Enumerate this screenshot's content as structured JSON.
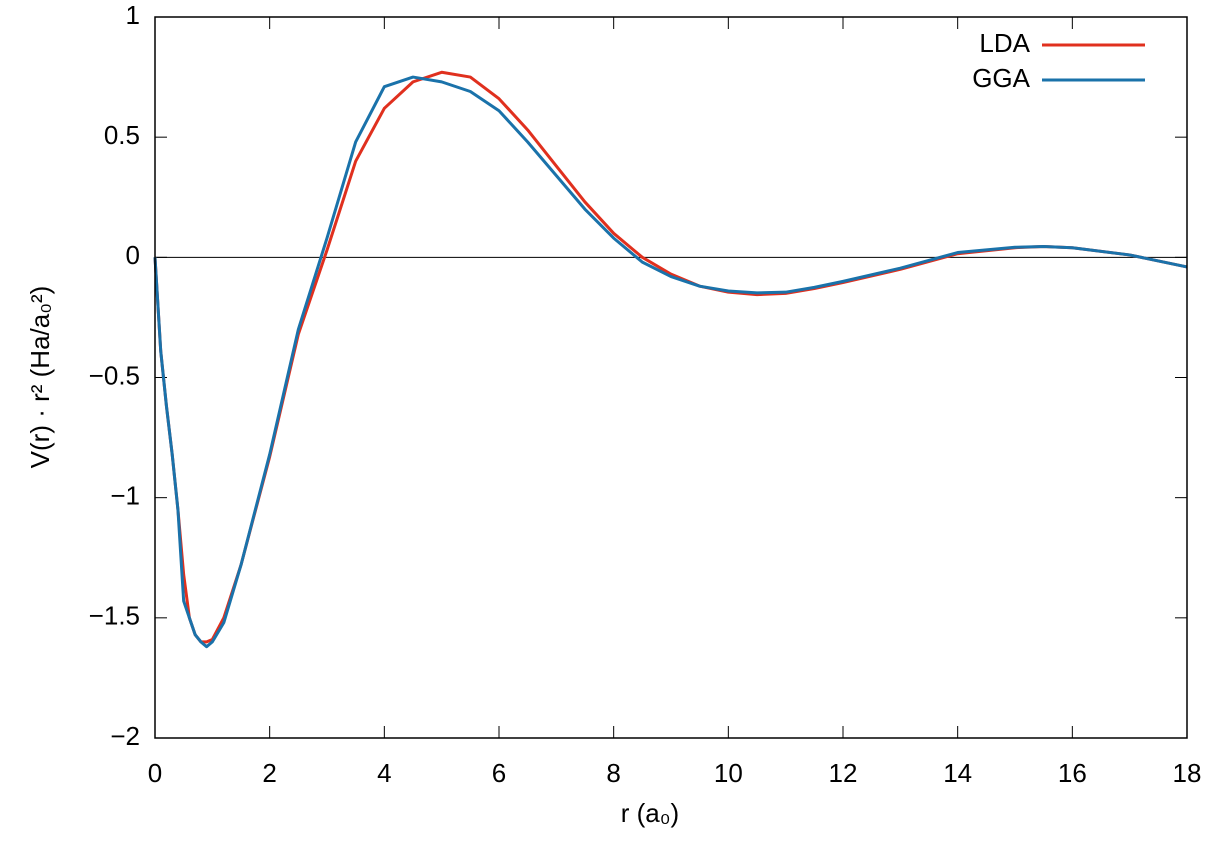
{
  "chart_data": {
    "type": "line",
    "xlabel": "r (a₀)",
    "ylabel": "V(r) · r² (Ha/a₀²)",
    "x": [
      0,
      0.1,
      0.2,
      0.3,
      0.4,
      0.5,
      0.6,
      0.7,
      0.8,
      0.9,
      1,
      1.2,
      1.5,
      2,
      2.5,
      3,
      3.5,
      4,
      4.5,
      5,
      5.5,
      6,
      6.5,
      7,
      7.5,
      8,
      8.5,
      9,
      9.5,
      10,
      10.5,
      11,
      11.5,
      12,
      13,
      14,
      15,
      15.5,
      16,
      17,
      18
    ],
    "series": [
      {
        "name": "LDA",
        "color": "#e0301e",
        "values": [
          0,
          -0.39,
          -0.62,
          -0.82,
          -1.05,
          -1.32,
          -1.5,
          -1.57,
          -1.6,
          -1.6,
          -1.59,
          -1.5,
          -1.28,
          -0.83,
          -0.32,
          0.03,
          0.4,
          0.62,
          0.73,
          0.77,
          0.75,
          0.66,
          0.53,
          0.38,
          0.23,
          0.1,
          0.0,
          -0.07,
          -0.12,
          -0.145,
          -0.155,
          -0.15,
          -0.13,
          -0.105,
          -0.05,
          0.015,
          0.04,
          0.045,
          0.04,
          0.01,
          -0.04
        ]
      },
      {
        "name": "GGA",
        "color": "#1a72aa",
        "values": [
          0,
          -0.39,
          -0.62,
          -0.82,
          -1.05,
          -1.43,
          -1.5,
          -1.57,
          -1.6,
          -1.62,
          -1.6,
          -1.52,
          -1.28,
          -0.82,
          -0.3,
          0.08,
          0.48,
          0.71,
          0.75,
          0.73,
          0.69,
          0.61,
          0.48,
          0.34,
          0.2,
          0.08,
          -0.02,
          -0.08,
          -0.12,
          -0.14,
          -0.148,
          -0.145,
          -0.125,
          -0.1,
          -0.045,
          0.02,
          0.042,
          0.045,
          0.04,
          0.01,
          -0.04
        ]
      }
    ],
    "xlim": [
      0,
      18
    ],
    "xticks": [
      0,
      2,
      4,
      6,
      8,
      10,
      12,
      14,
      16,
      18
    ],
    "ylim": [
      -2,
      1
    ],
    "yticks": [
      {
        "value": -2,
        "label": "−2"
      },
      {
        "value": -1.5,
        "label": "−1.5"
      },
      {
        "value": -1,
        "label": "−1"
      },
      {
        "value": -0.5,
        "label": "−0.5"
      },
      0,
      0.5,
      1
    ],
    "zeroline": true,
    "legend": "upper right"
  }
}
